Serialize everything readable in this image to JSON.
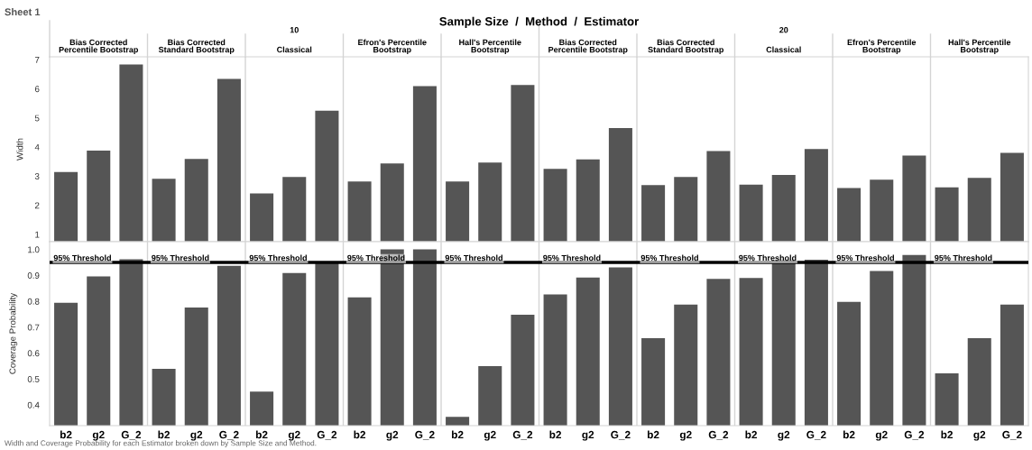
{
  "chart_data": [
    {
      "type": "other",
      "annotations": [
        "Sheet 1",
        "Width and Coverage Probability for each Estimator broken down by Sample Size and Method."
      ]
    },
    {
      "type": "bar",
      "title": "Sample Size  /  Method  /  Estimator",
      "ylabel": "Width",
      "annotations": [
        "10",
        "20",
        "Bias Corrected\nPercentile Bootstrap",
        "Bias Corrected\nStandard Bootstrap",
        "Classical",
        "Efron's Percentile\nBootstrap",
        "Hall's Percentile\nBootstrap",
        "Bias Corrected\nPercentile Bootstrap",
        "Bias Corrected\nStandard Bootstrap",
        "Classical",
        "Efron's Percentile\nBootstrap",
        "Hall's Percentile\nBootstrap"
      ],
      "categories": [
        null,
        null,
        null,
        null,
        null,
        null,
        null,
        null,
        null,
        null,
        null,
        null,
        null,
        null,
        null,
        null,
        null,
        null,
        null,
        null,
        null,
        null,
        null,
        null,
        null,
        null,
        null,
        null,
        null,
        null
      ],
      "values": [
        3.14,
        3.88,
        6.84,
        2.91,
        3.59,
        6.34,
        2.41,
        2.97,
        5.25,
        2.82,
        3.44,
        6.09,
        2.82,
        3.47,
        6.13,
        3.25,
        3.58,
        4.65,
        2.69,
        2.97,
        3.86,
        2.71,
        3.04,
        3.93,
        2.59,
        2.88,
        3.71,
        2.62,
        2.94,
        3.8
      ],
      "color": "#555555",
      "ylim": [
        0.75,
        7.1
      ],
      "yticks": [
        1,
        2,
        3,
        4,
        5,
        6,
        7
      ],
      "tick_labels": "y"
    },
    {
      "type": "bar",
      "ylabel": "Coverage Probability",
      "categories": [
        "b2",
        "g2",
        "G_2",
        "b2",
        "g2",
        "G_2",
        "b2",
        "g2",
        "G_2",
        "b2",
        "g2",
        "G_2",
        "b2",
        "g2",
        "G_2",
        "b2",
        "g2",
        "G_2",
        "b2",
        "g2",
        "G_2",
        "b2",
        "g2",
        "G_2",
        "b2",
        "g2",
        "G_2",
        "b2",
        "g2",
        "G_2"
      ],
      "values": [
        0.794,
        0.896,
        0.962,
        0.539,
        0.776,
        0.937,
        0.451,
        0.909,
        0.95,
        0.815,
        1.0,
        1.0,
        0.354,
        0.55,
        0.748,
        0.826,
        0.892,
        0.931,
        0.658,
        0.787,
        0.886,
        0.89,
        0.96,
        0.96,
        0.798,
        0.917,
        0.979,
        0.522,
        0.658,
        0.787
      ],
      "color": "#555555",
      "ylim": [
        0.32,
        1.03
      ],
      "yticks": [
        {
          "value": 0.4,
          "label": "0.4"
        },
        {
          "value": 0.5,
          "label": "0.5"
        },
        {
          "value": 0.6,
          "label": "0.6"
        },
        {
          "value": 0.7,
          "label": "0.7"
        },
        {
          "value": 0.8,
          "label": "0.8"
        },
        {
          "value": 0.9,
          "label": "0.9"
        },
        {
          "value": 1.0,
          "label": "1.0"
        }
      ],
      "ref_lines": [
        {
          "axis": "y",
          "value": 0.95,
          "label": "95% Threshold",
          "color": "#000000"
        }
      ]
    }
  ]
}
